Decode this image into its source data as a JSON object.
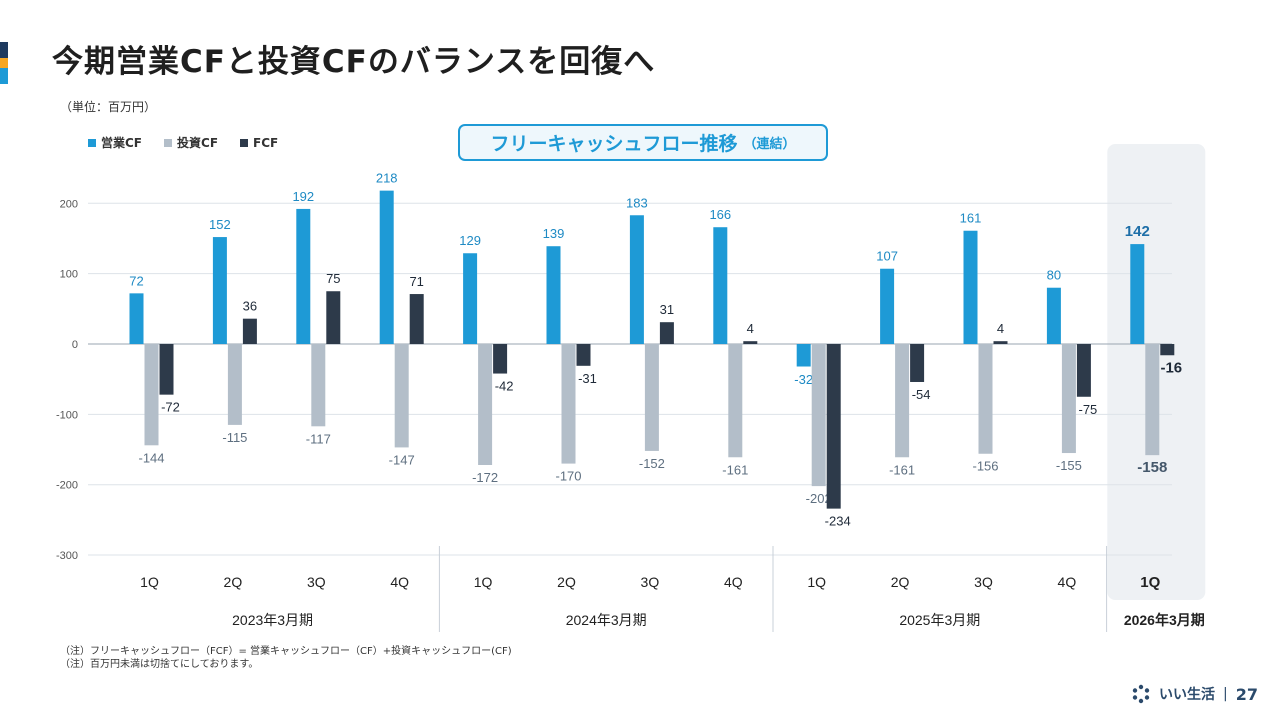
{
  "header": {
    "title": "今期営業CFと投資CFのバランスを回復へ",
    "unit": "（単位：百万円）"
  },
  "chart_header": {
    "title_main": "フリーキャッシュフロー推移",
    "title_sub": "（連結）"
  },
  "colors": {
    "operating": "#1e9ad6",
    "investing": "#b3bec9",
    "fcf": "#2d3a4a",
    "highlight_bg": "#eef1f4",
    "grid": "#dde3e8"
  },
  "chart_data": {
    "type": "bar",
    "ylim": [
      -300,
      200
    ],
    "yticks": [
      "200",
      "100",
      "0",
      "-100",
      "-200",
      "-300"
    ],
    "ytick_values": [
      200,
      100,
      0,
      -100,
      -200,
      -300
    ],
    "categories": [
      "1Q",
      "2Q",
      "3Q",
      "4Q",
      "1Q",
      "2Q",
      "3Q",
      "4Q",
      "1Q",
      "2Q",
      "3Q",
      "4Q",
      "1Q"
    ],
    "groups": [
      {
        "label": "2023年3月期",
        "start": 0,
        "end": 3
      },
      {
        "label": "2024年3月期",
        "start": 4,
        "end": 7
      },
      {
        "label": "2025年3月期",
        "start": 8,
        "end": 11
      },
      {
        "label": "2026年3月期",
        "start": 12,
        "end": 12
      }
    ],
    "highlight_index": 12,
    "series": [
      {
        "name": "営業CF",
        "key": "operating",
        "values": [
          72,
          152,
          192,
          218,
          129,
          139,
          183,
          166,
          -32,
          107,
          161,
          80,
          142
        ]
      },
      {
        "name": "投資CF",
        "key": "investing",
        "values": [
          -144,
          -115,
          -117,
          -147,
          -172,
          -170,
          -152,
          -161,
          -202,
          -161,
          -156,
          -155,
          -158
        ]
      },
      {
        "name": "FCF",
        "key": "fcf",
        "values": [
          -72,
          36,
          75,
          71,
          -42,
          -31,
          31,
          4,
          -234,
          -54,
          4,
          -75,
          -16
        ]
      }
    ],
    "legend_position": "top-left",
    "grid": true
  },
  "notes": [
    "（注）フリーキャッシュフロー（FCF）= 営業キャッシュフロー（CF）+投資キャッシュフロー(CF)",
    "（注）百万円未満は切捨てにしております。"
  ],
  "footer": {
    "brand": "いい生活",
    "separator": "|",
    "page_number": "27",
    "logo_icon": "hexagon-ring-icon"
  }
}
